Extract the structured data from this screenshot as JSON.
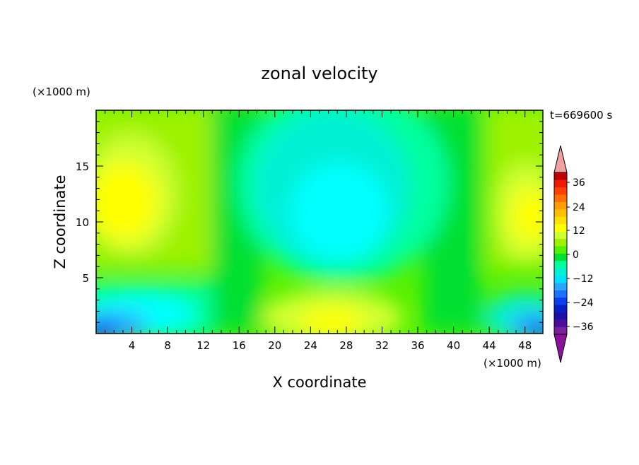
{
  "chart_data": {
    "type": "contour",
    "title": "zonal velocity",
    "xlabel": "X coordinate",
    "ylabel": "Z coordinate",
    "x_unit": "(×1000 m)",
    "y_unit": "(×1000 m)",
    "time_label": "t=669600 s",
    "xlim": [
      0,
      50
    ],
    "ylim": [
      0,
      20
    ],
    "x_ticks": [
      4,
      8,
      12,
      16,
      20,
      24,
      28,
      32,
      36,
      40,
      44,
      48
    ],
    "y_ticks": [
      5,
      10,
      15
    ],
    "colorbar": {
      "levels": [
        -42,
        -39,
        -36,
        -33,
        -30,
        -27,
        -24,
        -21,
        -18,
        -15,
        -12,
        -9,
        -6,
        -3,
        0,
        3,
        6,
        9,
        12,
        15,
        18,
        21,
        24,
        27,
        30,
        33,
        36,
        39,
        42
      ],
      "tick_labels": [
        "36",
        "24",
        "12",
        "0",
        "−12",
        "−24",
        "−36"
      ],
      "tick_values": [
        36,
        24,
        12,
        0,
        -12,
        -24,
        -36
      ],
      "colors_low_to_high": [
        "#7a1fa0",
        "#4b0c9c",
        "#1c10a8",
        "#0a1ec8",
        "#0a3ef0",
        "#1a72ff",
        "#2aa8ff",
        "#00e0ff",
        "#00f0d4",
        "#00ffa0",
        "#00e030",
        "#55f000",
        "#9df200",
        "#d2ff30",
        "#ffff00",
        "#ffe000",
        "#ffc000",
        "#ff9c00",
        "#ff7000",
        "#ff4000",
        "#f01c00",
        "#c00000"
      ],
      "extend_high_color": "#f3a0a0",
      "extend_low_color": "#8a129c"
    },
    "field_notes": "Contoured u(x,z): yellow/positive (~12-15) near left and right edges at z≈8-15, cyan/negative (~-9) core near x≈24-30 z≈8-16, blue strongly negative (~-20 to -30) near bottom corners, green ~0 bands around x≈14-18 and x≈38-42."
  }
}
